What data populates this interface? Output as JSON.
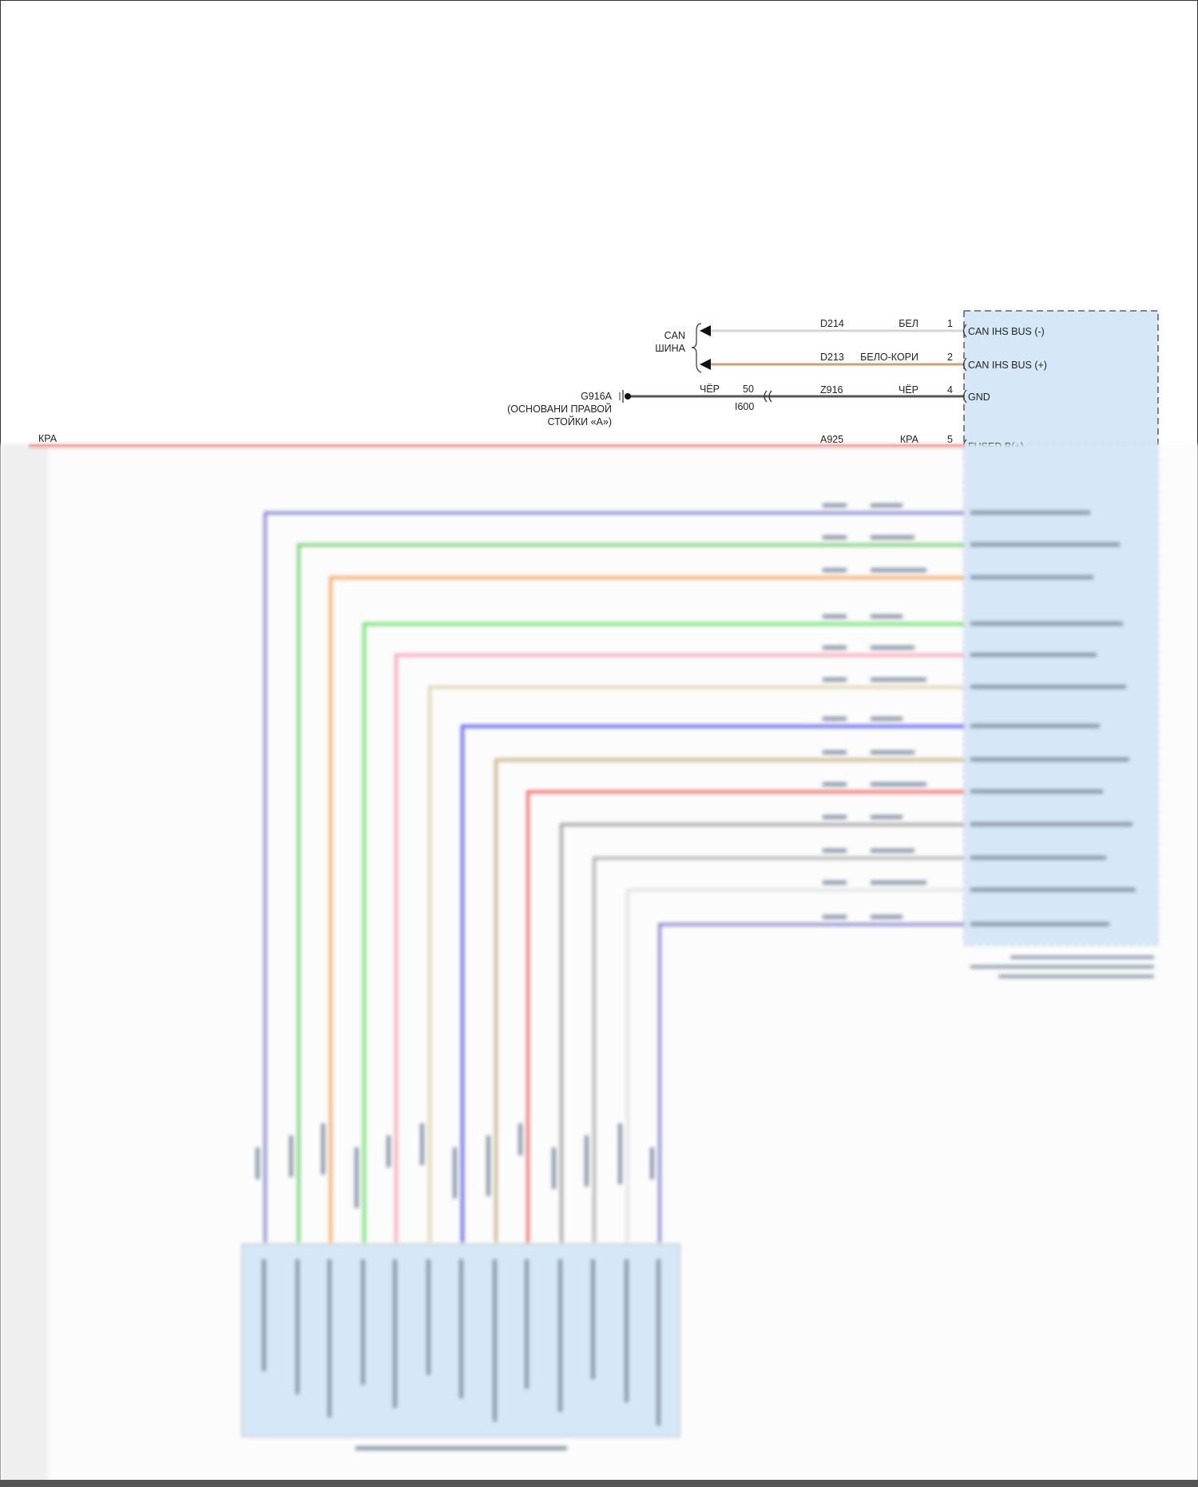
{
  "can_bus": {
    "label_line1": "CAN",
    "label_line2": "ШИНА"
  },
  "module_pins": [
    {
      "wire": "D214",
      "color_label": "БЕЛ",
      "pin": "1",
      "function": "CAN IHS BUS (-)",
      "color": "#d6d6d6"
    },
    {
      "wire": "D213",
      "color_label": "БЕЛО-КОРИ",
      "pin": "2",
      "function": "CAN IHS BUS (+)",
      "color": "#c8a27a"
    },
    {
      "wire": "Z916",
      "color_label": "ЧЁР",
      "pin": "4",
      "function": "GND",
      "color": "#555555"
    },
    {
      "wire": "A925",
      "color_label": "КРА",
      "pin": "5",
      "function": "FUSED B(+)",
      "color": "#e98a8a"
    }
  ],
  "ground": {
    "id": "G916A",
    "location_line1": "(ОСНОВАНИ ПРАВОЙ",
    "location_line2": "СТОЙКИ «А»)",
    "wire_color_label": "ЧЁР",
    "connector_pin": "50",
    "connector_id": "I600"
  },
  "left_feed": {
    "color_label": "КРА"
  },
  "module_fill": "#d6e8f8",
  "blurred_wire_colors": [
    "#8c8cd0",
    "#7ccf7c",
    "#f5aa6c",
    "#72e072",
    "#f4a8b8",
    "#e2d4b4",
    "#6464f0",
    "#c8b88e",
    "#f07272",
    "#a4a4a4",
    "#b4b4b4",
    "#e2e2e2",
    "#8c8cd0"
  ]
}
